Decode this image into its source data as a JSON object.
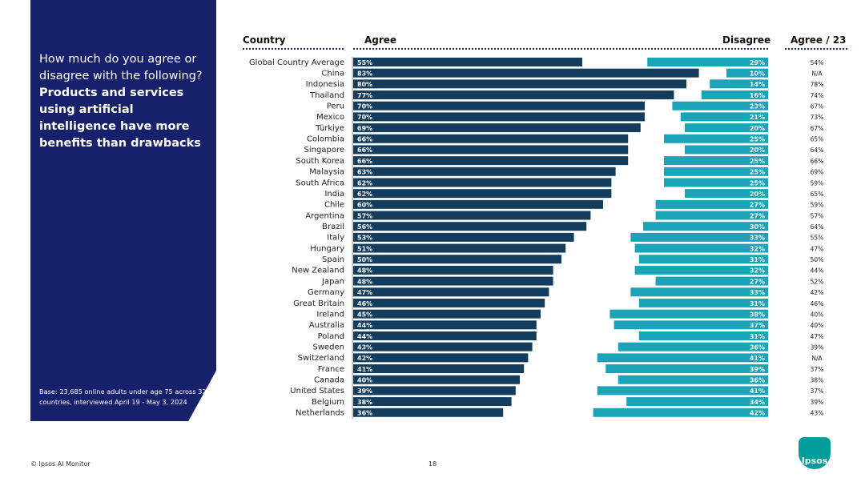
{
  "side_panel": {
    "question_intro": "How much do you agree or disagree with the following?",
    "question_bold": "Products and services using artificial intelligence have more benefits than drawbacks",
    "base_note": "Base: 23,685 online adults under age 75 across 32 countries, interviewed April 19 - May 3, 2024"
  },
  "headers": {
    "country": "Country",
    "agree": "Agree",
    "disagree": "Disagree",
    "agree23": "Agree / 23"
  },
  "footer": {
    "source": "© Ipsos AI Monitor",
    "page": "18",
    "logo": "Ipsos"
  },
  "colors": {
    "agree": "#143c5c",
    "disagree": "#1ba3b7",
    "panel": "#17206b"
  },
  "chart_data": {
    "type": "bar",
    "title": "Products and services using artificial intelligence have more benefits than drawbacks",
    "categories": [
      "Global Country Average",
      "China",
      "Indonesia",
      "Thailand",
      "Peru",
      "Mexico",
      "Türkiye",
      "Colombia",
      "Singapore",
      "South Korea",
      "Malaysia",
      "South Africa",
      "India",
      "Chile",
      "Argentina",
      "Brazil",
      "Italy",
      "Hungary",
      "Spain",
      "New Zealand",
      "Japan",
      "Germany",
      "Great Britain",
      "Ireland",
      "Australia",
      "Poland",
      "Sweden",
      "Switzerland",
      "France",
      "Canada",
      "United States",
      "Belgium",
      "Netherlands"
    ],
    "series": [
      {
        "name": "Agree",
        "values": [
          55,
          83,
          80,
          77,
          70,
          70,
          69,
          66,
          66,
          66,
          63,
          62,
          62,
          60,
          57,
          56,
          53,
          51,
          50,
          48,
          48,
          47,
          46,
          45,
          44,
          44,
          43,
          42,
          41,
          40,
          39,
          38,
          36
        ],
        "labels": [
          "55%",
          "83%",
          "80%",
          "77%",
          "70%",
          "70%",
          "69%",
          "66%",
          "66%",
          "66%",
          "63%",
          "62%",
          "62%",
          "60%",
          "57%",
          "56%",
          "53%",
          "51%",
          "50%",
          "48%",
          "48%",
          "47%",
          "46%",
          "45%",
          "44%",
          "44%",
          "43%",
          "42%",
          "41%",
          "40%",
          "39%",
          "38%",
          "36%"
        ]
      },
      {
        "name": "Disagree",
        "values": [
          29,
          10,
          14,
          16,
          23,
          21,
          20,
          25,
          20,
          25,
          25,
          25,
          20,
          27,
          27,
          30,
          33,
          32,
          31,
          32,
          27,
          33,
          31,
          38,
          37,
          31,
          36,
          41,
          39,
          36,
          41,
          34,
          42
        ],
        "labels": [
          "29%",
          "10%",
          "14%",
          "16%",
          "23%",
          "21%",
          "20%",
          "25%",
          "20%",
          "25%",
          "25%",
          "25%",
          "20%",
          "27%",
          "27%",
          "30%",
          "33%",
          "32%",
          "31%",
          "32%",
          "27%",
          "33%",
          "31%",
          "38%",
          "37%",
          "31%",
          "36%",
          "41%",
          "39%",
          "36%",
          "41%",
          "34%",
          "42%"
        ]
      }
    ],
    "agree_2023": [
      "54%",
      "N/A",
      "78%",
      "74%",
      "67%",
      "73%",
      "67%",
      "65%",
      "64%",
      "66%",
      "69%",
      "59%",
      "65%",
      "59%",
      "57%",
      "64%",
      "55%",
      "47%",
      "50%",
      "44%",
      "52%",
      "42%",
      "46%",
      "40%",
      "40%",
      "47%",
      "39%",
      "N/A",
      "37%",
      "38%",
      "37%",
      "39%",
      "43%"
    ],
    "xlim": [
      0,
      100
    ]
  }
}
